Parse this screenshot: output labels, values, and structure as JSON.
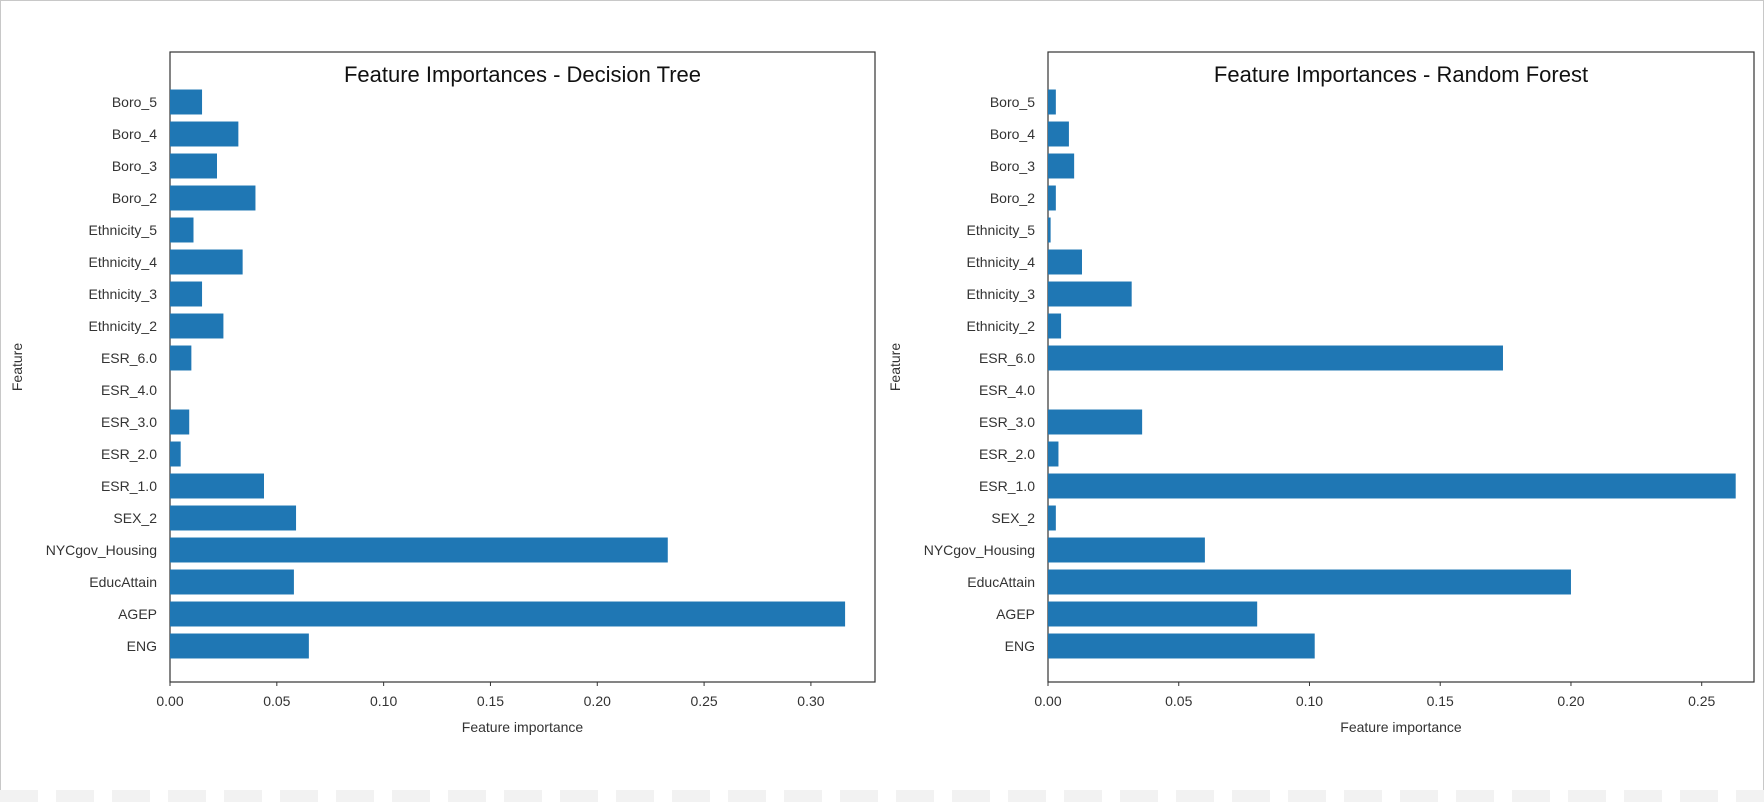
{
  "colors": {
    "bar": "#1f77b4",
    "axes": "#333333",
    "text": "#333333"
  },
  "chart_data": [
    {
      "type": "bar",
      "orientation": "horizontal",
      "title": "Feature Importances - Decision Tree",
      "xlabel": "Feature importance",
      "ylabel": "Feature",
      "xlim": [
        0,
        0.33
      ],
      "xticks": [
        "0.00",
        "0.05",
        "0.10",
        "0.15",
        "0.20",
        "0.25",
        "0.30"
      ],
      "grid": false,
      "categories": [
        "ENG",
        "AGEP",
        "EducAttain",
        "NYCgov_Housing",
        "SEX_2",
        "ESR_1.0",
        "ESR_2.0",
        "ESR_3.0",
        "ESR_4.0",
        "ESR_6.0",
        "Ethnicity_2",
        "Ethnicity_3",
        "Ethnicity_4",
        "Ethnicity_5",
        "Boro_2",
        "Boro_3",
        "Boro_4",
        "Boro_5"
      ],
      "values": [
        0.065,
        0.316,
        0.058,
        0.233,
        0.059,
        0.044,
        0.005,
        0.009,
        0.0,
        0.01,
        0.025,
        0.015,
        0.034,
        0.011,
        0.04,
        0.022,
        0.032,
        0.015
      ]
    },
    {
      "type": "bar",
      "orientation": "horizontal",
      "title": "Feature Importances - Random Forest",
      "xlabel": "Feature importance",
      "ylabel": "Feature",
      "xlim": [
        0,
        0.27
      ],
      "xticks": [
        "0.00",
        "0.05",
        "0.10",
        "0.15",
        "0.20",
        "0.25"
      ],
      "grid": false,
      "categories": [
        "ENG",
        "AGEP",
        "EducAttain",
        "NYCgov_Housing",
        "SEX_2",
        "ESR_1.0",
        "ESR_2.0",
        "ESR_3.0",
        "ESR_4.0",
        "ESR_6.0",
        "Ethnicity_2",
        "Ethnicity_3",
        "Ethnicity_4",
        "Ethnicity_5",
        "Boro_2",
        "Boro_3",
        "Boro_4",
        "Boro_5"
      ],
      "values": [
        0.102,
        0.08,
        0.2,
        0.06,
        0.003,
        0.263,
        0.004,
        0.036,
        0.0,
        0.174,
        0.005,
        0.032,
        0.013,
        0.001,
        0.003,
        0.01,
        0.008,
        0.003
      ]
    }
  ]
}
